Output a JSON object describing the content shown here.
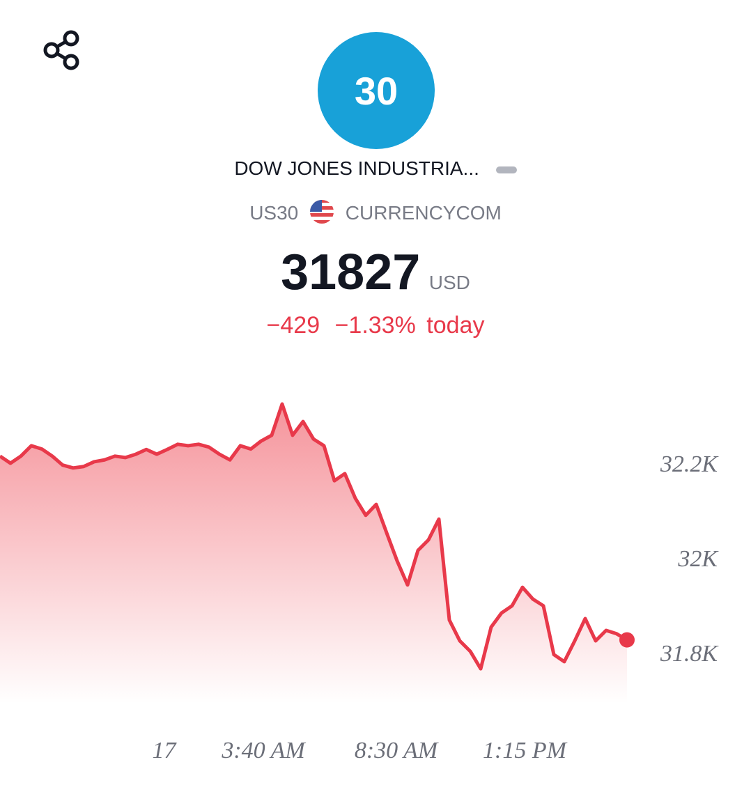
{
  "header": {
    "logo": "30",
    "name": "DOW JONES INDUSTRIA...",
    "symbol": "US30",
    "exchange": "CURRENCYCOM",
    "price": "31827",
    "currency": "USD",
    "change": "−429",
    "change_percent": "−1.33%",
    "period": "today"
  },
  "chart_data": {
    "type": "line",
    "color": "#e8394a",
    "x": [
      0,
      1,
      2,
      3,
      4,
      5,
      6,
      7,
      8,
      9,
      10,
      11,
      12,
      13,
      14,
      15,
      16,
      17,
      18,
      19,
      20,
      21,
      22,
      23,
      24,
      25,
      26,
      27,
      28,
      29,
      30,
      31,
      32,
      33,
      34,
      35,
      36,
      37,
      38,
      39,
      40,
      41,
      42,
      43,
      44,
      45,
      46,
      47,
      48,
      49,
      50,
      51,
      52,
      53,
      54,
      55,
      56,
      57,
      58,
      59,
      60
    ],
    "values": [
      32215,
      32200,
      32215,
      32237,
      32230,
      32215,
      32196,
      32190,
      32193,
      32203,
      32207,
      32215,
      32212,
      32219,
      32229,
      32219,
      32229,
      32240,
      32237,
      32240,
      32234,
      32219,
      32207,
      32237,
      32230,
      32247,
      32259,
      32325,
      32259,
      32288,
      32251,
      32237,
      32163,
      32178,
      32126,
      32090,
      32113,
      32053,
      31994,
      31943,
      32016,
      32038,
      32082,
      31869,
      31825,
      31803,
      31766,
      31854,
      31884,
      31899,
      31938,
      31913,
      31899,
      31796,
      31781,
      31825,
      31872,
      31825,
      31847,
      31840,
      31827
    ],
    "xlim": [
      0,
      60
    ],
    "ylim": [
      31700,
      32350
    ],
    "xticks": [
      {
        "value": 15.7,
        "label": "17"
      },
      {
        "value": 25.2,
        "label": "3:40 AM"
      },
      {
        "value": 37.9,
        "label": "8:30 AM"
      },
      {
        "value": 50.2,
        "label": "1:15 PM"
      }
    ],
    "yticks": [
      {
        "value": 31800,
        "label": "31.8K"
      },
      {
        "value": 32000,
        "label": "32K"
      },
      {
        "value": 32200,
        "label": "32.2K"
      }
    ]
  }
}
